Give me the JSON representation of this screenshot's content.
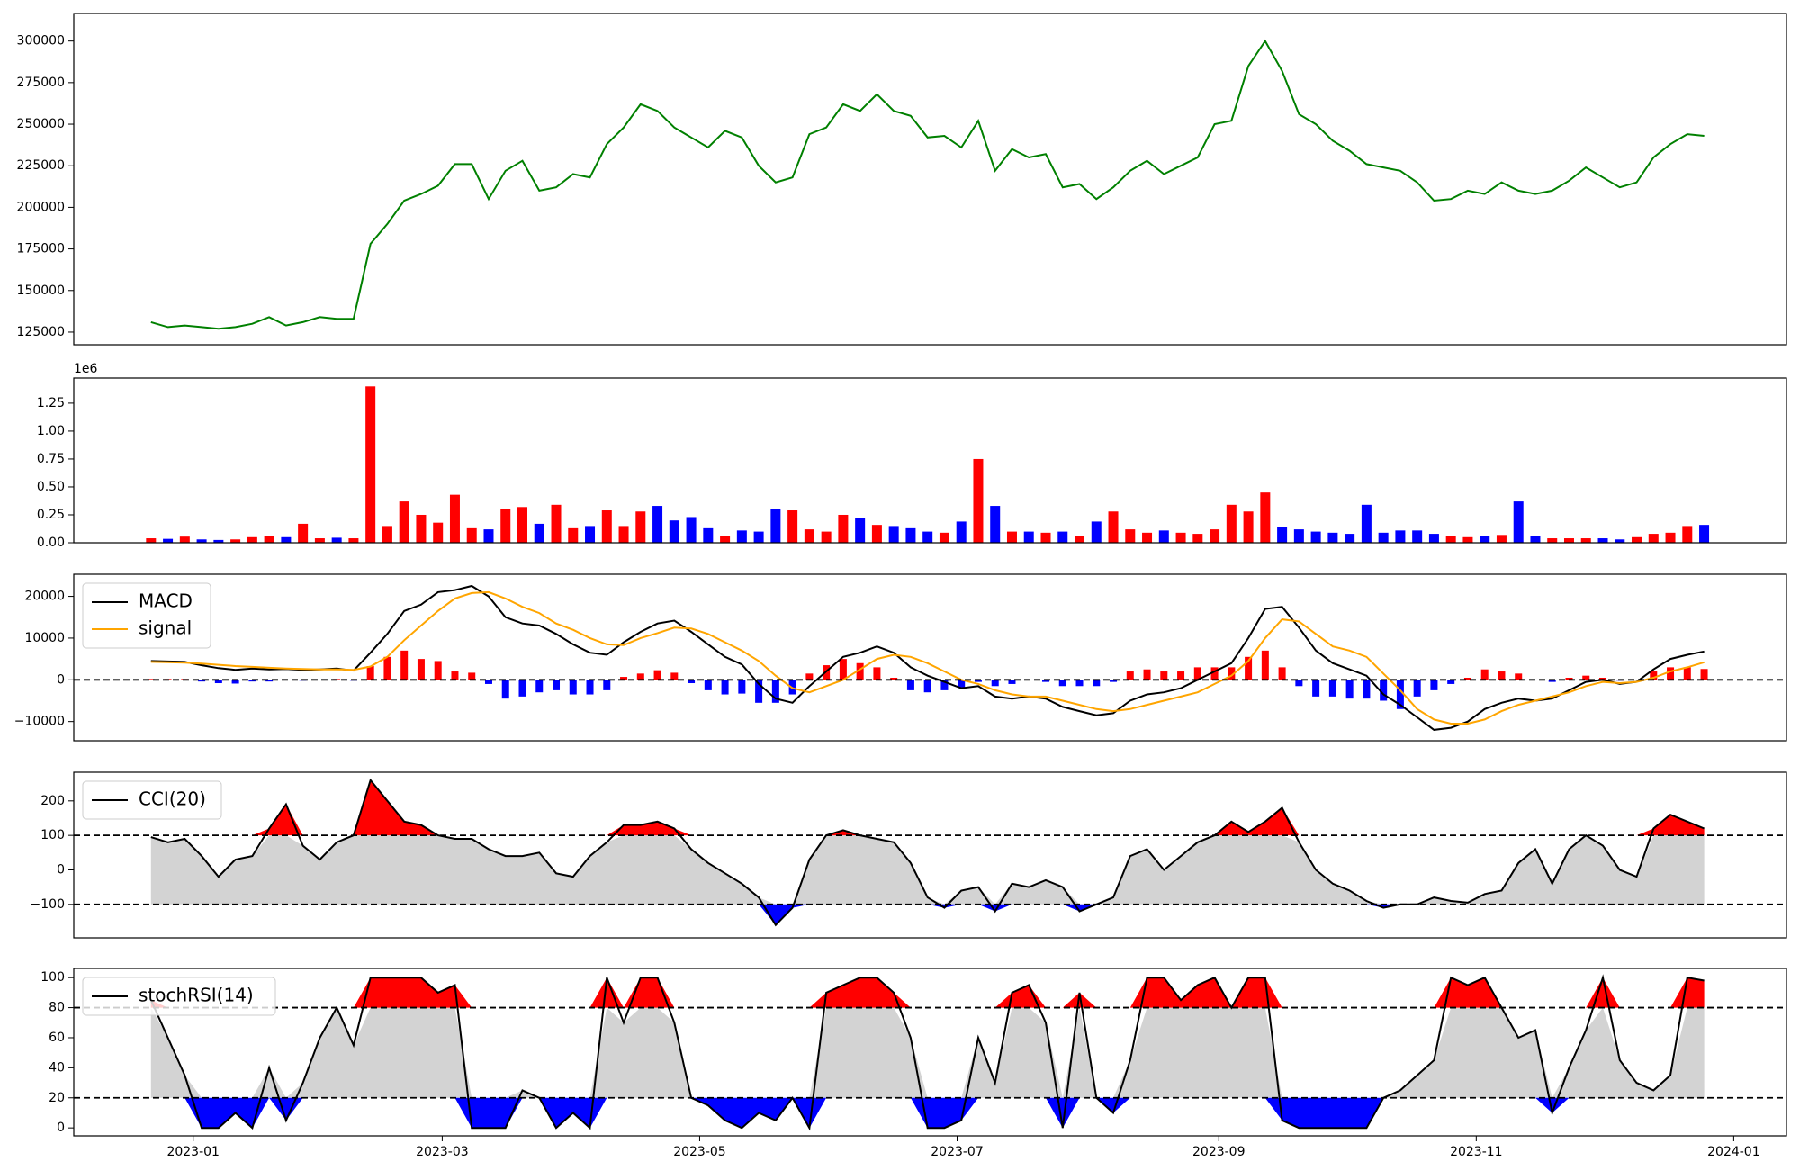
{
  "chart_data": [
    {
      "type": "line",
      "ylim": [
        117400,
        316600
      ],
      "yticks": [
        125000,
        150000,
        175000,
        200000,
        225000,
        250000,
        275000,
        300000
      ],
      "series": [
        {
          "color": "green",
          "values": [
            131000,
            128000,
            129000,
            128000,
            127000,
            128000,
            130000,
            134000,
            129000,
            131000,
            134000,
            133000,
            133000,
            178000,
            190000,
            204000,
            208000,
            213000,
            226000,
            226000,
            205000,
            222000,
            228000,
            210000,
            212000,
            220000,
            218000,
            238000,
            248000,
            262000,
            258000,
            248000,
            242000,
            236000,
            246000,
            242000,
            225000,
            215000,
            218000,
            244000,
            248000,
            262000,
            258000,
            268000,
            258000,
            255000,
            242000,
            243000,
            236000,
            252000,
            222000,
            235000,
            230000,
            232000,
            212000,
            214000,
            205000,
            212000,
            222000,
            228000,
            220000,
            225000,
            230000,
            250000,
            252000,
            285000,
            300000,
            282000,
            256000,
            250000,
            240000,
            234000,
            226000,
            224000,
            222000,
            215000,
            204000,
            205000,
            210000,
            208000,
            215000,
            210000,
            208000,
            210000,
            216000,
            224000,
            218000,
            212000,
            215000,
            230000,
            238000,
            244000,
            243000
          ]
        }
      ]
    },
    {
      "type": "bar",
      "ylim": [
        0,
        1475000
      ],
      "offset_label": "1e6",
      "yticks": [
        {
          "value": 0,
          "label": "0.00"
        },
        {
          "value": 250000,
          "label": "0.25"
        },
        {
          "value": 500000,
          "label": "0.50"
        },
        {
          "value": 750000,
          "label": "0.75"
        },
        {
          "value": 1000000,
          "label": "1.00"
        },
        {
          "value": 1250000,
          "label": "1.25"
        }
      ],
      "up_color": "red",
      "down_color": "blue",
      "values": [
        40000,
        35000,
        55000,
        30000,
        25000,
        30000,
        50000,
        60000,
        50000,
        170000,
        40000,
        45000,
        40000,
        1400000,
        150000,
        370000,
        250000,
        180000,
        430000,
        130000,
        120000,
        300000,
        320000,
        170000,
        340000,
        130000,
        150000,
        290000,
        150000,
        280000,
        330000,
        200000,
        230000,
        130000,
        60000,
        110000,
        100000,
        300000,
        290000,
        120000,
        100000,
        250000,
        220000,
        160000,
        150000,
        130000,
        100000,
        90000,
        190000,
        750000,
        330000,
        100000,
        100000,
        90000,
        100000,
        60000,
        190000,
        280000,
        120000,
        90000,
        110000,
        90000,
        80000,
        120000,
        340000,
        280000,
        450000,
        140000,
        120000,
        100000,
        90000,
        80000,
        340000,
        90000,
        110000,
        110000,
        80000,
        60000,
        50000,
        60000,
        70000,
        370000,
        60000,
        40000,
        40000,
        40000,
        40000,
        30000,
        50000,
        80000,
        90000,
        150000,
        160000
      ]
    },
    {
      "type": "combo",
      "ylim": [
        -14600,
        25300
      ],
      "yticks": [
        {
          "value": -10000,
          "label": "−10000"
        },
        0,
        10000,
        20000
      ],
      "legend": "upper left",
      "hlines": [
        0
      ],
      "histogram": {
        "up_color": "red",
        "down_color": "blue",
        "values": [
          200,
          200,
          200,
          -400,
          -800,
          -900,
          -400,
          -400,
          -100,
          -200,
          0,
          200,
          -200,
          3300,
          5500,
          7000,
          5000,
          4500,
          2000,
          1700,
          -1000,
          -4500,
          -4000,
          -3000,
          -2500,
          -3500,
          -3500,
          -2500,
          700,
          1500,
          2300,
          1700,
          -800,
          -2500,
          -3500,
          -3300,
          -5500,
          -5500,
          -3500,
          1500,
          3500,
          5000,
          4000,
          3000,
          500,
          -2500,
          -3000,
          -2500,
          -2000,
          -500,
          -1500,
          -1000,
          0,
          -500,
          -1500,
          -1500,
          -1500,
          -500,
          2000,
          2500,
          2000,
          2000,
          3000,
          3000,
          3000,
          5500,
          7000,
          3000,
          -1500,
          -4000,
          -4000,
          -4500,
          -4500,
          -5000,
          -7000,
          -4000,
          -2500,
          -1000,
          500,
          2500,
          2000,
          1500,
          0,
          -500,
          500,
          1000,
          500,
          -200,
          0,
          2000,
          3000,
          3000,
          2600
        ]
      },
      "series": [
        {
          "name": "MACD",
          "color": "black",
          "values": [
            4500,
            4400,
            4300,
            3500,
            2800,
            2400,
            2700,
            2500,
            2600,
            2400,
            2500,
            2700,
            2200,
            6500,
            11000,
            16500,
            18000,
            21000,
            21500,
            22500,
            20000,
            15000,
            13500,
            13000,
            11000,
            8500,
            6500,
            6000,
            9000,
            11500,
            13500,
            14200,
            11500,
            8500,
            5500,
            3700,
            -1000,
            -4500,
            -5500,
            -1500,
            2000,
            5500,
            6500,
            8000,
            6500,
            3000,
            1000,
            -500,
            -2000,
            -1500,
            -4000,
            -4500,
            -4000,
            -4500,
            -6500,
            -7500,
            -8500,
            -8000,
            -5000,
            -3500,
            -3000,
            -2000,
            0,
            2000,
            4000,
            10000,
            17000,
            17500,
            12500,
            7000,
            4000,
            2500,
            1000,
            -3500,
            -6000,
            -9000,
            -12000,
            -11500,
            -10000,
            -7000,
            -5500,
            -4500,
            -5000,
            -4500,
            -2500,
            -500,
            0,
            -1000,
            -500,
            2500,
            5000,
            6000,
            6800
          ]
        },
        {
          "name": "signal",
          "color": "orange",
          "values": [
            4300,
            4200,
            4100,
            3900,
            3600,
            3300,
            3100,
            2900,
            2700,
            2600,
            2500,
            2500,
            2400,
            3200,
            5500,
            9500,
            13000,
            16500,
            19500,
            20800,
            21000,
            19500,
            17500,
            16000,
            13500,
            12000,
            10000,
            8500,
            8300,
            10000,
            11200,
            12500,
            12300,
            11000,
            9000,
            7000,
            4500,
            1000,
            -2000,
            -3000,
            -1500,
            0,
            2500,
            5000,
            6000,
            5500,
            4000,
            2000,
            0,
            -1000,
            -2500,
            -3500,
            -4000,
            -4000,
            -5000,
            -6000,
            -7000,
            -7500,
            -7000,
            -6000,
            -5000,
            -4000,
            -3000,
            -1000,
            1000,
            4500,
            10000,
            14500,
            14000,
            11000,
            8000,
            7000,
            5500,
            1500,
            -2500,
            -7000,
            -9500,
            -10500,
            -10500,
            -9500,
            -7500,
            -6000,
            -5000,
            -4000,
            -3000,
            -1500,
            -500,
            -800,
            -500,
            500,
            2000,
            3000,
            4200
          ]
        }
      ]
    },
    {
      "type": "band",
      "ylim": [
        -197,
        283
      ],
      "yticks": [
        {
          "value": -100,
          "label": "−100"
        },
        0,
        100,
        200
      ],
      "legend": "upper left",
      "hlines": [
        -100,
        100
      ],
      "fill_colors": {
        "above": "red",
        "below": "blue",
        "inside": "lightgray"
      },
      "series": [
        {
          "name": "CCI(20)",
          "color": "black",
          "values": [
            95,
            80,
            90,
            40,
            -20,
            30,
            40,
            120,
            190,
            70,
            30,
            80,
            100,
            260,
            200,
            140,
            130,
            100,
            90,
            90,
            60,
            40,
            40,
            50,
            -10,
            -20,
            40,
            80,
            130,
            130,
            140,
            120,
            60,
            20,
            -10,
            -40,
            -80,
            -160,
            -110,
            30,
            100,
            115,
            100,
            90,
            80,
            20,
            -80,
            -110,
            -60,
            -50,
            -120,
            -40,
            -50,
            -30,
            -50,
            -120,
            -100,
            -80,
            40,
            60,
            0,
            40,
            80,
            100,
            140,
            110,
            140,
            180,
            80,
            0,
            -40,
            -60,
            -90,
            -110,
            -100,
            -100,
            -80,
            -90,
            -95,
            -70,
            -60,
            20,
            60,
            -40,
            60,
            100,
            70,
            0,
            -20,
            120,
            160,
            140,
            120
          ]
        }
      ]
    },
    {
      "type": "band",
      "ylim": [
        -5.3,
        106.1
      ],
      "yticks": [
        0,
        20,
        40,
        60,
        80,
        100
      ],
      "legend": "upper left",
      "hlines": [
        20,
        80
      ],
      "fill_colors": {
        "above": "red",
        "below": "blue",
        "inside": "lightgray"
      },
      "xlim": [
        -28.3,
        377.5
      ],
      "xticks": [
        {
          "value": 0,
          "label": "2023-01"
        },
        {
          "value": 59,
          "label": "2023-03"
        },
        {
          "value": 120,
          "label": "2023-05"
        },
        {
          "value": 181,
          "label": "2023-07"
        },
        {
          "value": 243,
          "label": "2023-09"
        },
        {
          "value": 304,
          "label": "2023-11"
        },
        {
          "value": 365,
          "label": "2024-01"
        }
      ],
      "x": [
        -10,
        -6,
        -2,
        2,
        6,
        10,
        14,
        18,
        22,
        26,
        30,
        34,
        38,
        42,
        46,
        50,
        54,
        58,
        62,
        66,
        70,
        74,
        78,
        82,
        86,
        90,
        94,
        98,
        102,
        106,
        110,
        114,
        118,
        122,
        126,
        130,
        134,
        138,
        142,
        146,
        150,
        154,
        158,
        162,
        166,
        170,
        174,
        178,
        182,
        186,
        190,
        194,
        198,
        202,
        206,
        210,
        214,
        218,
        222,
        226,
        230,
        234,
        238,
        242,
        246,
        250,
        254,
        258,
        262,
        266,
        270,
        274,
        278,
        282,
        286,
        290,
        294,
        298,
        302,
        306,
        310,
        314,
        318,
        322,
        326,
        330,
        334,
        338,
        342,
        346,
        350,
        354,
        358
      ],
      "series": [
        {
          "name": "stochRSI(14)",
          "color": "black",
          "values": [
            85,
            60,
            35,
            0,
            0,
            10,
            0,
            40,
            5,
            30,
            60,
            80,
            55,
            100,
            100,
            100,
            100,
            90,
            95,
            0,
            0,
            0,
            25,
            20,
            0,
            10,
            0,
            100,
            70,
            100,
            100,
            70,
            20,
            15,
            5,
            0,
            10,
            5,
            20,
            0,
            90,
            95,
            100,
            100,
            90,
            60,
            0,
            0,
            5,
            60,
            30,
            90,
            95,
            70,
            0,
            90,
            20,
            10,
            45,
            100,
            100,
            85,
            95,
            100,
            80,
            100,
            100,
            5,
            0,
            0,
            0,
            0,
            0,
            20,
            25,
            35,
            45,
            100,
            95,
            100,
            80,
            60,
            65,
            10,
            40,
            65,
            100,
            45,
            30,
            25,
            35,
            100,
            98
          ]
        }
      ]
    }
  ]
}
